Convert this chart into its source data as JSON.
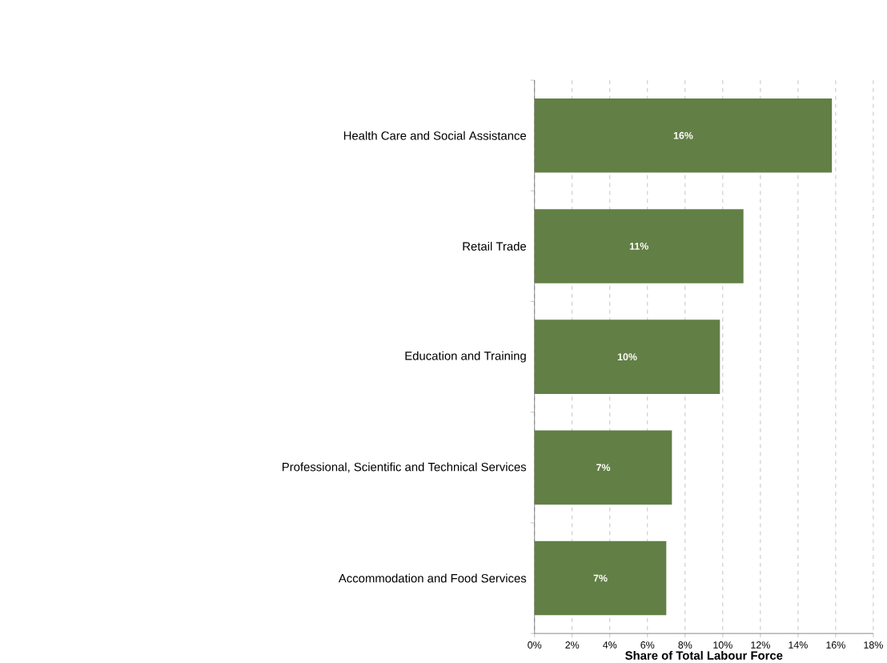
{
  "chart_data": {
    "type": "bar",
    "orientation": "horizontal",
    "xlabel": "Share of Total Labour Force",
    "categories": [
      "Health Care and Social Assistance",
      "Retail Trade",
      "Education and Training",
      "Professional, Scientific and Technical Services",
      "Accommodation and Food Services"
    ],
    "values": [
      15.8,
      11.1,
      9.85,
      7.3,
      7.0
    ],
    "value_labels": [
      "16%",
      "11%",
      "10%",
      "7%",
      "7%"
    ],
    "color": "#627f45",
    "xlim": [
      0,
      18
    ],
    "xticks": [
      {
        "value": 0,
        "label": "0%"
      },
      {
        "value": 2,
        "label": "2%"
      },
      {
        "value": 4,
        "label": "4%"
      },
      {
        "value": 6,
        "label": "6%"
      },
      {
        "value": 8,
        "label": "8%"
      },
      {
        "value": 10,
        "label": "10%"
      },
      {
        "value": 12,
        "label": "12%"
      },
      {
        "value": 14,
        "label": "14%"
      },
      {
        "value": 16,
        "label": "16%"
      },
      {
        "value": 18,
        "label": "18%"
      }
    ],
    "grid": "x"
  }
}
